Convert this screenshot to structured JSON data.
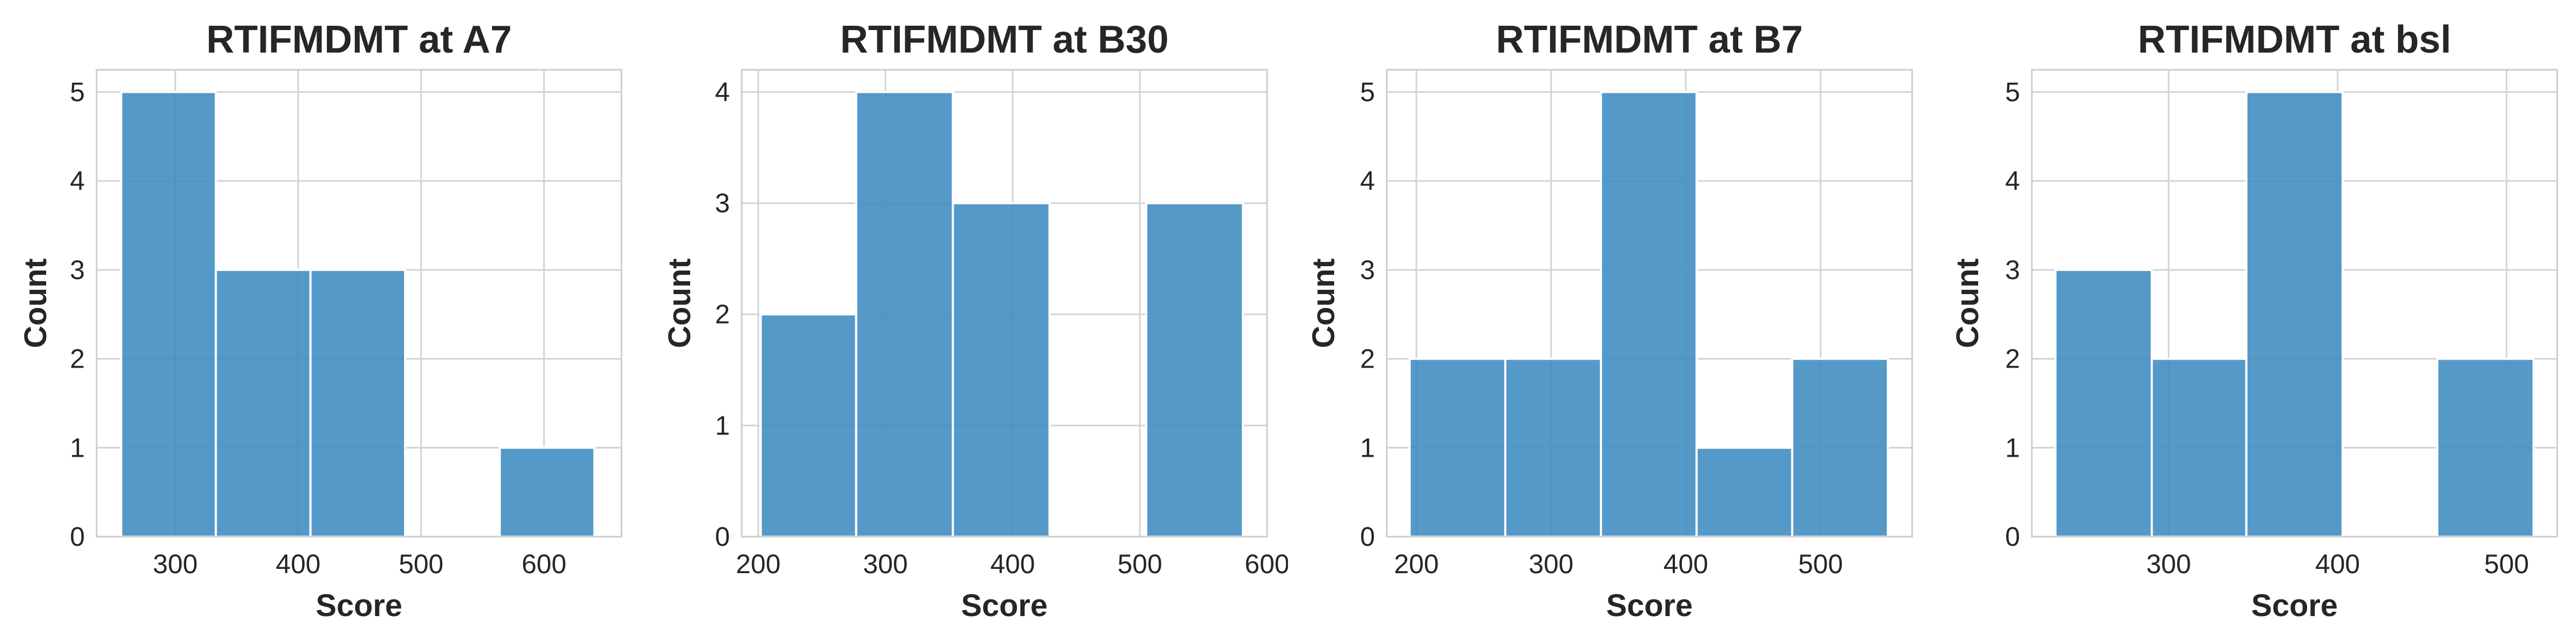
{
  "colors": {
    "bar": "#3D8BC2",
    "bar_edge": "#ffffff",
    "grid": "#d3d3d3",
    "frame": "#cccccc",
    "text": "#262626"
  },
  "chart_data": [
    {
      "type": "bar",
      "subtype": "histogram",
      "title": "RTIFMDMT at A7",
      "xlabel": "Score",
      "ylabel": "Count",
      "xlim": [
        236,
        663
      ],
      "ylim": [
        0,
        5.25
      ],
      "x_ticks": [
        "300",
        "400",
        "500",
        "600"
      ],
      "x_tick_values": [
        300,
        400,
        500,
        600
      ],
      "y_ticks": [
        "0",
        "1",
        "2",
        "3",
        "4",
        "5"
      ],
      "y_tick_values": [
        0,
        1,
        2,
        3,
        4,
        5
      ],
      "bins": [
        {
          "start": 256,
          "end": 333,
          "count": 5
        },
        {
          "start": 333,
          "end": 410,
          "count": 3
        },
        {
          "start": 410,
          "end": 487,
          "count": 3
        },
        {
          "start": 487,
          "end": 564,
          "count": 0
        },
        {
          "start": 564,
          "end": 641,
          "count": 1
        }
      ],
      "grid": true
    },
    {
      "type": "bar",
      "subtype": "histogram",
      "title": "RTIFMDMT at B30",
      "xlabel": "Score",
      "ylabel": "Count",
      "xlim": [
        187,
        600
      ],
      "ylim": [
        0,
        4.2
      ],
      "x_ticks": [
        "200",
        "300",
        "400",
        "500",
        "600"
      ],
      "x_tick_values": [
        200,
        300,
        400,
        500,
        600
      ],
      "y_ticks": [
        "0",
        "1",
        "2",
        "3",
        "4"
      ],
      "y_tick_values": [
        0,
        1,
        2,
        3,
        4
      ],
      "bins": [
        {
          "start": 202,
          "end": 277,
          "count": 2
        },
        {
          "start": 277,
          "end": 353,
          "count": 4
        },
        {
          "start": 353,
          "end": 429,
          "count": 3
        },
        {
          "start": 429,
          "end": 505,
          "count": 0
        },
        {
          "start": 505,
          "end": 581,
          "count": 3
        }
      ],
      "grid": true
    },
    {
      "type": "bar",
      "subtype": "histogram",
      "title": "RTIFMDMT at B7",
      "xlabel": "Score",
      "ylabel": "Count",
      "xlim": [
        178,
        568
      ],
      "ylim": [
        0,
        5.25
      ],
      "x_ticks": [
        "200",
        "300",
        "400",
        "500"
      ],
      "x_tick_values": [
        200,
        300,
        400,
        500
      ],
      "y_ticks": [
        "0",
        "1",
        "2",
        "3",
        "4",
        "5"
      ],
      "y_tick_values": [
        0,
        1,
        2,
        3,
        4,
        5
      ],
      "bins": [
        {
          "start": 195,
          "end": 266,
          "count": 2
        },
        {
          "start": 266,
          "end": 337,
          "count": 2
        },
        {
          "start": 337,
          "end": 408,
          "count": 5
        },
        {
          "start": 408,
          "end": 479,
          "count": 1
        },
        {
          "start": 479,
          "end": 550,
          "count": 2
        }
      ],
      "grid": true
    },
    {
      "type": "bar",
      "subtype": "histogram",
      "title": "RTIFMDMT at bsl",
      "xlabel": "Score",
      "ylabel": "Count",
      "xlim": [
        219,
        530
      ],
      "ylim": [
        0,
        5.25
      ],
      "x_ticks": [
        "300",
        "400",
        "500"
      ],
      "x_tick_values": [
        300,
        400,
        500
      ],
      "y_ticks": [
        "0",
        "1",
        "2",
        "3",
        "4",
        "5"
      ],
      "y_tick_values": [
        0,
        1,
        2,
        3,
        4,
        5
      ],
      "bins": [
        {
          "start": 233,
          "end": 290,
          "count": 3
        },
        {
          "start": 290,
          "end": 346,
          "count": 2
        },
        {
          "start": 346,
          "end": 403,
          "count": 5
        },
        {
          "start": 403,
          "end": 459,
          "count": 0
        },
        {
          "start": 459,
          "end": 516,
          "count": 2
        }
      ],
      "grid": true
    }
  ]
}
